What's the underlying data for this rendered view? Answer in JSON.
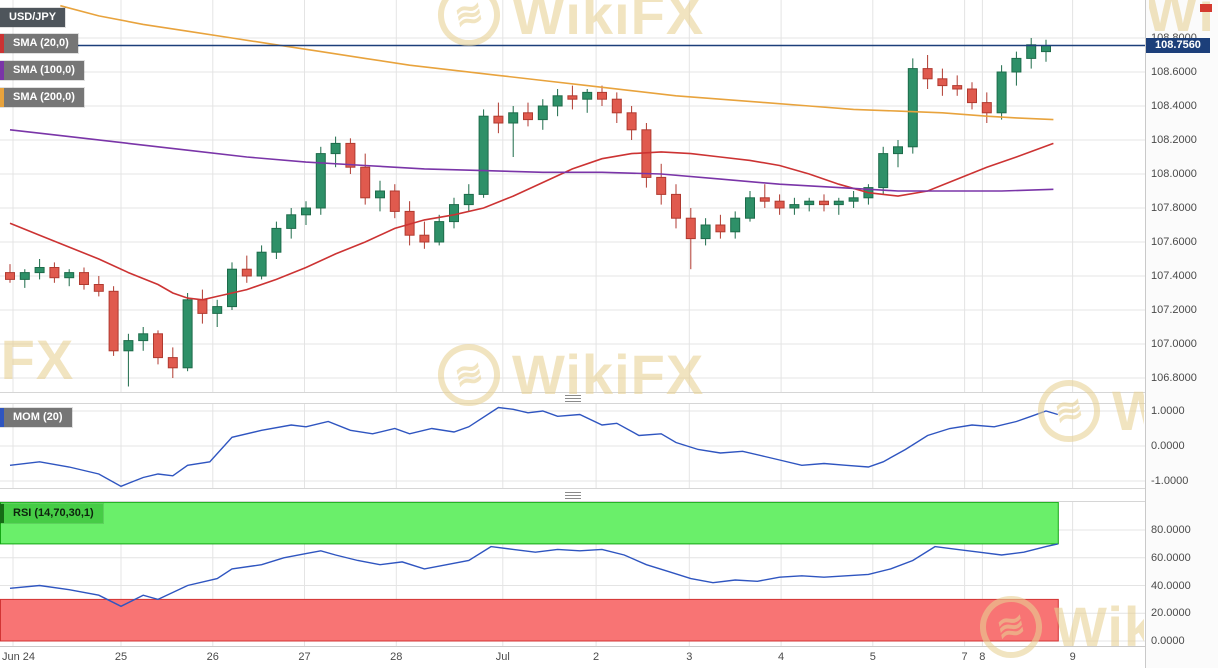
{
  "watermark": {
    "text": "WikiFX",
    "color": "#e8d194"
  },
  "chart_data": [
    {
      "type": "candlestick",
      "title": "USD/JPY",
      "current_price": 108.756,
      "current_price_label": "108.7560",
      "price_line_color": "#1c3f7a",
      "candle_up_color": "#2e9068",
      "candle_up_border": "#1d6b4a",
      "candle_down_color": "#e05a4e",
      "candle_down_border": "#b03a30",
      "ylim": [
        106.73,
        109.02
      ],
      "y_ticks": [
        "108.8000",
        "108.6000",
        "108.4000",
        "108.2000",
        "108.0000",
        "107.8000",
        "107.6000",
        "107.4000",
        "107.2000",
        "107.0000",
        "106.8000"
      ],
      "x_ticks": [
        {
          "i": 0.2,
          "label": "Jun 24"
        },
        {
          "i": 7.5,
          "label": "25"
        },
        {
          "i": 13.7,
          "label": "26"
        },
        {
          "i": 19.9,
          "label": "27"
        },
        {
          "i": 26.1,
          "label": "28"
        },
        {
          "i": 33.3,
          "label": "Jul"
        },
        {
          "i": 39.6,
          "label": "2"
        },
        {
          "i": 45.9,
          "label": "3"
        },
        {
          "i": 52.1,
          "label": "4"
        },
        {
          "i": 58.3,
          "label": "5"
        },
        {
          "i": 64.5,
          "label": "7"
        },
        {
          "i": 65.7,
          "label": "8"
        },
        {
          "i": 71.8,
          "label": "9"
        }
      ],
      "candles": [
        [
          107.42,
          107.47,
          107.36,
          107.38
        ],
        [
          107.38,
          107.44,
          107.33,
          107.42
        ],
        [
          107.42,
          107.5,
          107.38,
          107.45
        ],
        [
          107.45,
          107.48,
          107.36,
          107.39
        ],
        [
          107.39,
          107.44,
          107.34,
          107.42
        ],
        [
          107.42,
          107.45,
          107.32,
          107.35
        ],
        [
          107.35,
          107.4,
          107.28,
          107.31
        ],
        [
          107.31,
          107.34,
          106.93,
          106.96
        ],
        [
          106.96,
          107.06,
          106.75,
          107.02
        ],
        [
          107.02,
          107.1,
          106.96,
          107.06
        ],
        [
          107.06,
          107.08,
          106.88,
          106.92
        ],
        [
          106.92,
          106.98,
          106.8,
          106.86
        ],
        [
          106.86,
          107.3,
          106.84,
          107.26
        ],
        [
          107.26,
          107.32,
          107.12,
          107.18
        ],
        [
          107.18,
          107.26,
          107.1,
          107.22
        ],
        [
          107.22,
          107.48,
          107.2,
          107.44
        ],
        [
          107.44,
          107.52,
          107.36,
          107.4
        ],
        [
          107.4,
          107.58,
          107.38,
          107.54
        ],
        [
          107.54,
          107.72,
          107.5,
          107.68
        ],
        [
          107.68,
          107.8,
          107.62,
          107.76
        ],
        [
          107.76,
          107.84,
          107.7,
          107.8
        ],
        [
          107.8,
          108.16,
          107.76,
          108.12
        ],
        [
          108.12,
          108.22,
          108.04,
          108.18
        ],
        [
          108.18,
          108.21,
          108.0,
          108.04
        ],
        [
          108.04,
          108.12,
          107.82,
          107.86
        ],
        [
          107.86,
          107.96,
          107.78,
          107.9
        ],
        [
          107.9,
          107.94,
          107.74,
          107.78
        ],
        [
          107.78,
          107.84,
          107.58,
          107.64
        ],
        [
          107.64,
          107.72,
          107.56,
          107.6
        ],
        [
          107.6,
          107.76,
          107.58,
          107.72
        ],
        [
          107.72,
          107.86,
          107.68,
          107.82
        ],
        [
          107.82,
          107.94,
          107.78,
          107.88
        ],
        [
          107.88,
          108.38,
          107.86,
          108.34
        ],
        [
          108.34,
          108.42,
          108.24,
          108.3
        ],
        [
          108.3,
          108.4,
          108.1,
          108.36
        ],
        [
          108.36,
          108.42,
          108.28,
          108.32
        ],
        [
          108.32,
          108.44,
          108.26,
          108.4
        ],
        [
          108.4,
          108.5,
          108.34,
          108.46
        ],
        [
          108.46,
          108.52,
          108.38,
          108.44
        ],
        [
          108.44,
          108.5,
          108.36,
          108.48
        ],
        [
          108.48,
          108.52,
          108.4,
          108.44
        ],
        [
          108.44,
          108.48,
          108.3,
          108.36
        ],
        [
          108.36,
          108.4,
          108.2,
          108.26
        ],
        [
          108.26,
          108.3,
          107.92,
          107.98
        ],
        [
          107.98,
          108.06,
          107.82,
          107.88
        ],
        [
          107.88,
          107.94,
          107.68,
          107.74
        ],
        [
          107.74,
          107.8,
          107.44,
          107.62
        ],
        [
          107.62,
          107.74,
          107.58,
          107.7
        ],
        [
          107.7,
          107.76,
          107.62,
          107.66
        ],
        [
          107.66,
          107.78,
          107.62,
          107.74
        ],
        [
          107.74,
          107.9,
          107.72,
          107.86
        ],
        [
          107.86,
          107.94,
          107.8,
          107.84
        ],
        [
          107.84,
          107.88,
          107.76,
          107.8
        ],
        [
          107.8,
          107.86,
          107.76,
          107.82
        ],
        [
          107.82,
          107.86,
          107.78,
          107.84
        ],
        [
          107.84,
          107.88,
          107.78,
          107.82
        ],
        [
          107.82,
          107.86,
          107.76,
          107.84
        ],
        [
          107.84,
          107.9,
          107.8,
          107.86
        ],
        [
          107.86,
          107.94,
          107.82,
          107.92
        ],
        [
          107.92,
          108.16,
          107.88,
          108.12
        ],
        [
          108.12,
          108.2,
          108.04,
          108.16
        ],
        [
          108.16,
          108.68,
          108.12,
          108.62
        ],
        [
          108.62,
          108.7,
          108.5,
          108.56
        ],
        [
          108.56,
          108.62,
          108.46,
          108.52
        ],
        [
          108.52,
          108.58,
          108.46,
          108.5
        ],
        [
          108.5,
          108.54,
          108.38,
          108.42
        ],
        [
          108.42,
          108.48,
          108.3,
          108.36
        ],
        [
          108.36,
          108.64,
          108.32,
          108.6
        ],
        [
          108.6,
          108.72,
          108.52,
          108.68
        ],
        [
          108.68,
          108.8,
          108.62,
          108.76
        ],
        [
          108.72,
          108.79,
          108.66,
          108.756
        ]
      ],
      "overlays": [
        {
          "name": "SMA (20,0)",
          "color": "#cc3333",
          "points": [
            [
              0,
              107.71
            ],
            [
              2,
              107.64
            ],
            [
              4,
              107.57
            ],
            [
              6,
              107.5
            ],
            [
              8,
              107.42
            ],
            [
              10,
              107.35
            ],
            [
              11,
              107.3
            ],
            [
              12,
              107.27
            ],
            [
              13,
              107.26
            ],
            [
              14,
              107.28
            ],
            [
              16,
              107.32
            ],
            [
              18,
              107.38
            ],
            [
              20,
              107.45
            ],
            [
              22,
              107.53
            ],
            [
              24,
              107.6
            ],
            [
              26,
              107.68
            ],
            [
              28,
              107.73
            ],
            [
              30,
              107.76
            ],
            [
              32,
              107.8
            ],
            [
              34,
              107.87
            ],
            [
              36,
              107.95
            ],
            [
              38,
              108.03
            ],
            [
              40,
              108.09
            ],
            [
              42,
              108.12
            ],
            [
              44,
              108.13
            ],
            [
              46,
              108.12
            ],
            [
              48,
              108.1
            ],
            [
              50,
              108.08
            ],
            [
              52,
              108.05
            ],
            [
              54,
              108.0
            ],
            [
              56,
              107.94
            ],
            [
              58,
              107.89
            ],
            [
              60,
              107.87
            ],
            [
              62,
              107.9
            ],
            [
              64,
              107.97
            ],
            [
              66,
              108.04
            ],
            [
              68,
              108.1
            ],
            [
              70.5,
              108.18
            ]
          ]
        },
        {
          "name": "SMA (100,0)",
          "color": "#7a35a8",
          "points": [
            [
              0,
              108.26
            ],
            [
              4,
              108.22
            ],
            [
              8,
              108.18
            ],
            [
              12,
              108.14
            ],
            [
              16,
              108.1
            ],
            [
              20,
              108.07
            ],
            [
              24,
              108.05
            ],
            [
              28,
              108.03
            ],
            [
              32,
              108.02
            ],
            [
              36,
              108.01
            ],
            [
              40,
              108.01
            ],
            [
              44,
              108.0
            ],
            [
              48,
              107.97
            ],
            [
              52,
              107.94
            ],
            [
              56,
              107.92
            ],
            [
              60,
              107.9
            ],
            [
              64,
              107.9
            ],
            [
              67,
              107.9
            ],
            [
              70.5,
              107.91
            ]
          ]
        },
        {
          "name": "SMA (200,0)",
          "color": "#e8a33d",
          "points": [
            [
              3.4,
              108.99
            ],
            [
              6,
              108.93
            ],
            [
              9,
              108.88
            ],
            [
              12,
              108.84
            ],
            [
              15,
              108.8
            ],
            [
              18,
              108.76
            ],
            [
              21,
              108.72
            ],
            [
              24,
              108.68
            ],
            [
              27,
              108.64
            ],
            [
              30,
              108.61
            ],
            [
              33,
              108.58
            ],
            [
              36,
              108.55
            ],
            [
              39,
              108.52
            ],
            [
              42,
              108.49
            ],
            [
              45,
              108.46
            ],
            [
              48,
              108.44
            ],
            [
              51,
              108.42
            ],
            [
              54,
              108.4
            ],
            [
              57,
              108.38
            ],
            [
              60,
              108.37
            ],
            [
              63,
              108.36
            ],
            [
              66,
              108.34
            ],
            [
              68,
              108.33
            ],
            [
              70.5,
              108.32
            ]
          ]
        }
      ]
    },
    {
      "type": "line",
      "title": "MOM (20)",
      "color": "#2f55c0",
      "ylim": [
        -1.3,
        1.26
      ],
      "y_ticks": [
        "1.0000",
        "0.0000",
        "-1.0000"
      ],
      "points": [
        [
          0,
          -0.55
        ],
        [
          2,
          -0.45
        ],
        [
          4,
          -0.6
        ],
        [
          6,
          -0.8
        ],
        [
          7.5,
          -1.15
        ],
        [
          9,
          -0.9
        ],
        [
          10,
          -0.8
        ],
        [
          11,
          -0.85
        ],
        [
          12,
          -0.55
        ],
        [
          13.5,
          -0.45
        ],
        [
          15,
          0.25
        ],
        [
          17,
          0.45
        ],
        [
          19,
          0.6
        ],
        [
          20,
          0.55
        ],
        [
          21.5,
          0.7
        ],
        [
          23,
          0.45
        ],
        [
          24.5,
          0.35
        ],
        [
          26,
          0.5
        ],
        [
          27,
          0.35
        ],
        [
          28.5,
          0.5
        ],
        [
          30,
          0.4
        ],
        [
          31,
          0.55
        ],
        [
          33,
          1.1
        ],
        [
          34,
          1.05
        ],
        [
          35,
          0.95
        ],
        [
          36,
          1.0
        ],
        [
          37,
          0.85
        ],
        [
          38.5,
          0.9
        ],
        [
          40,
          0.6
        ],
        [
          41,
          0.65
        ],
        [
          42.5,
          0.3
        ],
        [
          44,
          0.35
        ],
        [
          45,
          0.1
        ],
        [
          46.5,
          -0.1
        ],
        [
          48,
          -0.2
        ],
        [
          49.5,
          -0.15
        ],
        [
          51,
          -0.3
        ],
        [
          52,
          -0.4
        ],
        [
          53.5,
          -0.55
        ],
        [
          55,
          -0.5
        ],
        [
          56.5,
          -0.55
        ],
        [
          58,
          -0.6
        ],
        [
          59,
          -0.45
        ],
        [
          60.5,
          -0.1
        ],
        [
          62,
          0.3
        ],
        [
          63.5,
          0.5
        ],
        [
          65,
          0.6
        ],
        [
          66.5,
          0.55
        ],
        [
          68,
          0.7
        ],
        [
          69,
          0.85
        ],
        [
          70,
          1.0
        ],
        [
          70.8,
          0.9
        ]
      ]
    },
    {
      "type": "line",
      "title": "RSI (14,70,30,1)",
      "color": "#2f55c0",
      "ylim": [
        0,
        101
      ],
      "legend_bg": "#46cc46",
      "legend_bar": "#156b15",
      "y_ticks": [
        "80.0000",
        "60.0000",
        "40.0000",
        "20.0000",
        "0.0000"
      ],
      "bands": [
        {
          "from": 70,
          "to": 100,
          "fill": "#6aef6a",
          "border": "#14a614"
        },
        {
          "from": 0,
          "to": 30,
          "fill": "#f87474",
          "border": "#d23434"
        }
      ],
      "band_end_i": 70.8,
      "points": [
        [
          0,
          38
        ],
        [
          2,
          40
        ],
        [
          4,
          37
        ],
        [
          6,
          33
        ],
        [
          7.5,
          25
        ],
        [
          9,
          33
        ],
        [
          10,
          30
        ],
        [
          12,
          40
        ],
        [
          14,
          45
        ],
        [
          15,
          52
        ],
        [
          17,
          55
        ],
        [
          18.5,
          60
        ],
        [
          20,
          63
        ],
        [
          21,
          65
        ],
        [
          22,
          62
        ],
        [
          23.5,
          58
        ],
        [
          25,
          55
        ],
        [
          26.5,
          57
        ],
        [
          28,
          52
        ],
        [
          29.5,
          55
        ],
        [
          31,
          58
        ],
        [
          32.5,
          68
        ],
        [
          34,
          66
        ],
        [
          35.5,
          64
        ],
        [
          37,
          66
        ],
        [
          38.5,
          65
        ],
        [
          40,
          66
        ],
        [
          41.5,
          62
        ],
        [
          43,
          55
        ],
        [
          44.5,
          50
        ],
        [
          46,
          45
        ],
        [
          47.5,
          42
        ],
        [
          49,
          44
        ],
        [
          50.5,
          43
        ],
        [
          52,
          46
        ],
        [
          53.5,
          47
        ],
        [
          55,
          46
        ],
        [
          56.5,
          47
        ],
        [
          58,
          48
        ],
        [
          59.5,
          52
        ],
        [
          61,
          58
        ],
        [
          62.5,
          68
        ],
        [
          64,
          66
        ],
        [
          65.5,
          64
        ],
        [
          67,
          62
        ],
        [
          68.5,
          64
        ],
        [
          70,
          68
        ],
        [
          70.8,
          70
        ]
      ]
    }
  ]
}
